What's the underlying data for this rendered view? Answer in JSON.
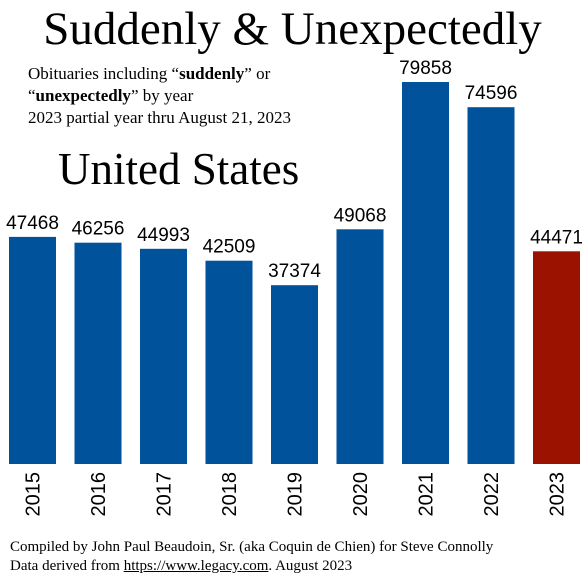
{
  "title": "Suddenly & Unexpectedly",
  "subtitle": {
    "line1_pre": "Obituaries including “",
    "term1": "suddenly",
    "line1_post": "” or",
    "line2_pre": "“",
    "term2": "unexpectedly",
    "line2_post": "” by year",
    "line3": "2023 partial year thru August 21, 2023"
  },
  "region": "United States",
  "footer": {
    "line1": "Compiled by John Paul Beaudoin, Sr. (aka Coquin de Chien) for Steve Connolly",
    "line2_pre": "Data derived from ",
    "link": "https://www.legacy.com",
    "line2_post": ". August 2023"
  },
  "colors": {
    "bar": "#00529b",
    "highlight": "#9b1200"
  },
  "chart_data": {
    "type": "bar",
    "categories": [
      "2015",
      "2016",
      "2017",
      "2018",
      "2019",
      "2020",
      "2021",
      "2022",
      "2023"
    ],
    "values": [
      47468,
      46256,
      44993,
      42509,
      37374,
      49068,
      79858,
      74596,
      44471
    ],
    "data_labels": [
      "47468",
      "46256",
      "44993",
      "42509",
      "37374",
      "49068",
      "79858",
      "74596",
      "44471"
    ],
    "highlight_category": "2023",
    "xlabel": "",
    "ylabel": "",
    "ylim": [
      0,
      80000
    ],
    "grid": false,
    "legend": "none"
  }
}
